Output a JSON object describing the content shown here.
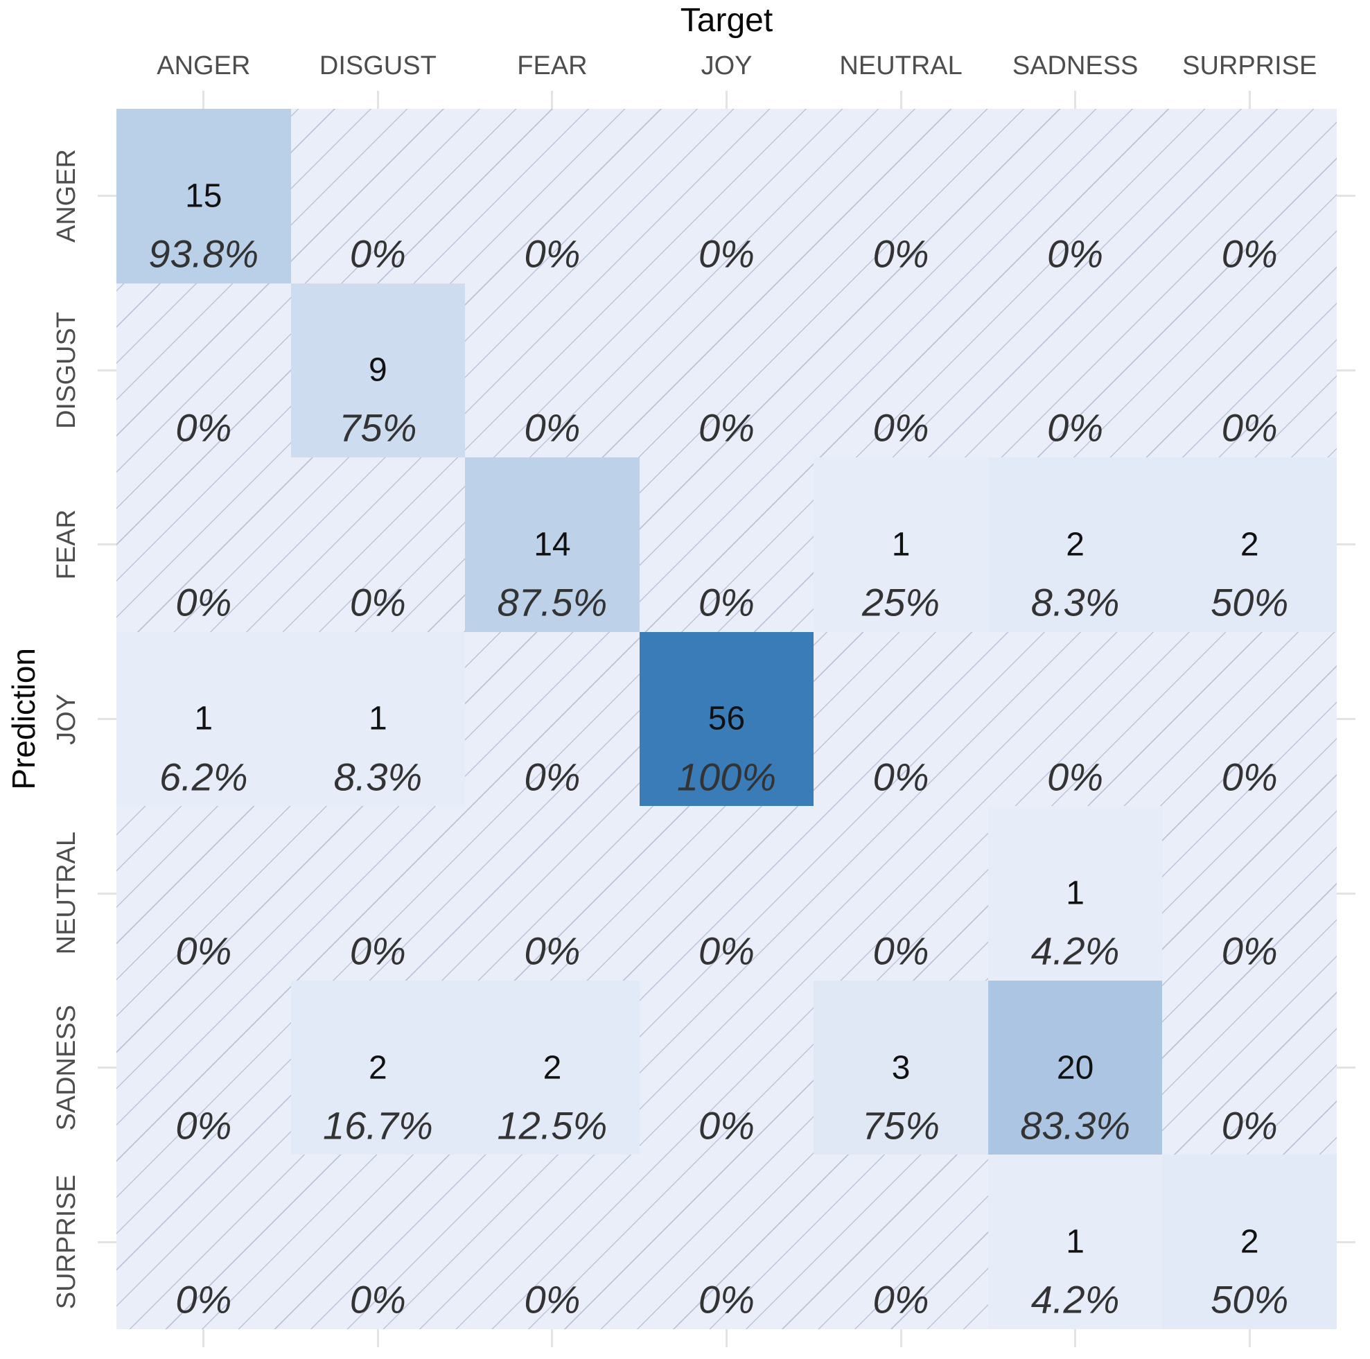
{
  "chart_data": {
    "type": "heatmap",
    "subtype": "confusion-matrix",
    "xlabel": "Target",
    "ylabel": "Prediction",
    "x_categories": [
      "ANGER",
      "DISGUST",
      "FEAR",
      "JOY",
      "NEUTRAL",
      "SADNESS",
      "SURPRISE"
    ],
    "y_categories": [
      "ANGER",
      "DISGUST",
      "FEAR",
      "JOY",
      "NEUTRAL",
      "SADNESS",
      "SURPRISE"
    ],
    "counts": [
      [
        15,
        0,
        0,
        0,
        0,
        0,
        0
      ],
      [
        0,
        9,
        0,
        0,
        0,
        0,
        0
      ],
      [
        0,
        0,
        14,
        0,
        1,
        2,
        2
      ],
      [
        1,
        1,
        0,
        56,
        0,
        0,
        0
      ],
      [
        0,
        0,
        0,
        0,
        0,
        1,
        0
      ],
      [
        0,
        2,
        2,
        0,
        3,
        20,
        0
      ],
      [
        0,
        0,
        0,
        0,
        0,
        1,
        2
      ]
    ],
    "percent_labels": [
      [
        "93.8%",
        "0%",
        "0%",
        "0%",
        "0%",
        "0%",
        "0%"
      ],
      [
        "0%",
        "75%",
        "0%",
        "0%",
        "0%",
        "0%",
        "0%"
      ],
      [
        "0%",
        "0%",
        "87.5%",
        "0%",
        "25%",
        "8.3%",
        "50%"
      ],
      [
        "6.2%",
        "8.3%",
        "0%",
        "100%",
        "0%",
        "0%",
        "0%"
      ],
      [
        "0%",
        "0%",
        "0%",
        "0%",
        "0%",
        "4.2%",
        "0%"
      ],
      [
        "0%",
        "16.7%",
        "12.5%",
        "0%",
        "75%",
        "83.3%",
        "0%"
      ],
      [
        "0%",
        "0%",
        "0%",
        "0%",
        "0%",
        "4.2%",
        "50%"
      ]
    ],
    "max_count": 56,
    "show_count_only_when_positive": true,
    "zero_cells_hatched": true,
    "legend_position": "none",
    "colors": {
      "low_fill": "#e9eef9",
      "high_fill": "#3a7cb8",
      "hatch_line": "#68739a",
      "tick": "#e3e3e3",
      "category_label": "#4d4d4d",
      "axis_title": "#0a0a0a",
      "count_text": "#111111",
      "percent_text": "#333333",
      "background": "#ffffff"
    }
  }
}
